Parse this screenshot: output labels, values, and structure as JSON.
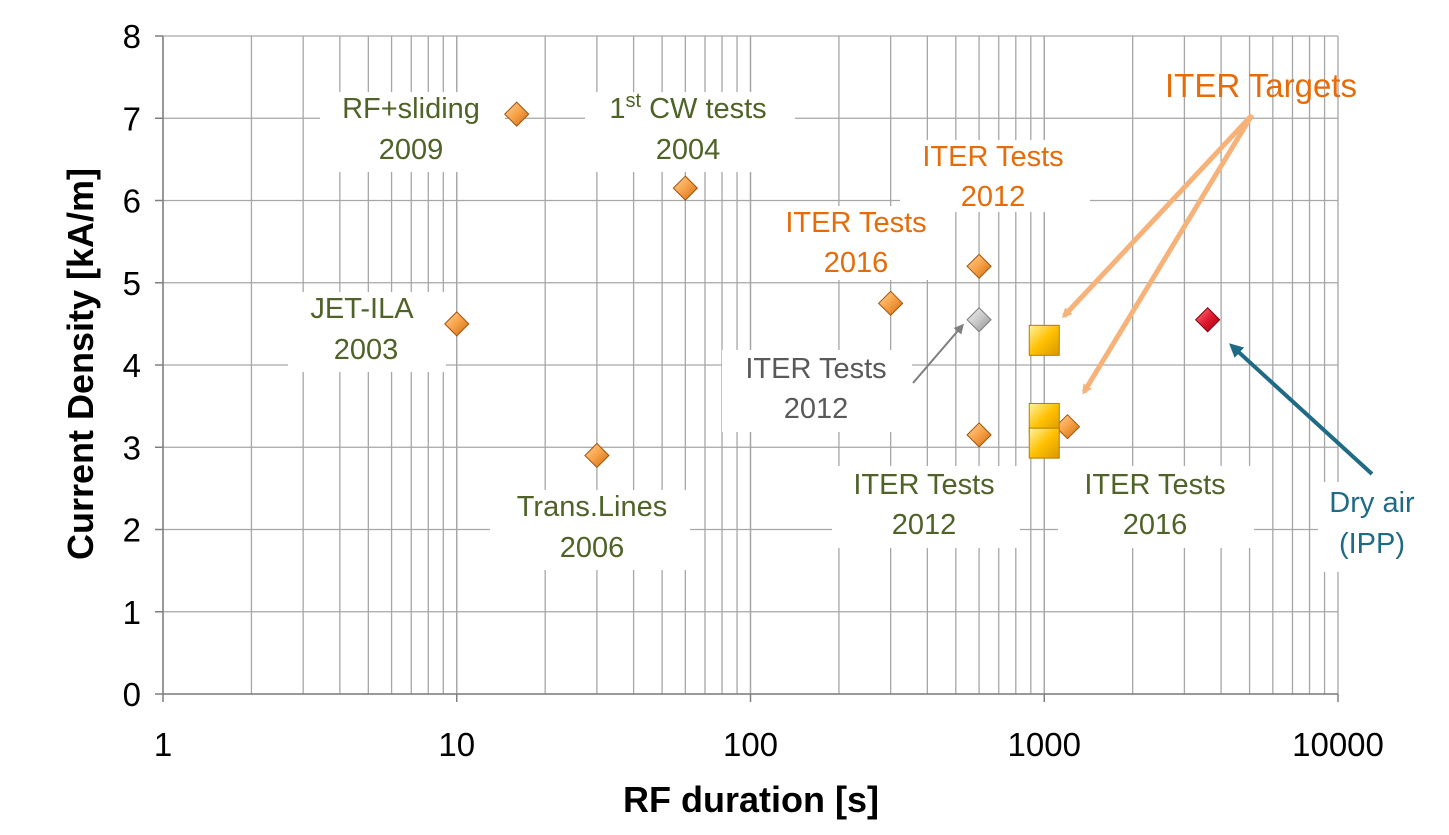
{
  "colors": {
    "olive": "#4f6228",
    "orange": "#e46c0a",
    "gray": "#595959",
    "teal": "#1f6b85",
    "light_orange": "#f7b27a",
    "grid": "#a6a6a6",
    "diamond_orange": "#f7a147",
    "diamond_gray": "#c8c8c8",
    "diamond_red": "#e0192f",
    "square_yellow": "#ffc000"
  },
  "chart_data": {
    "type": "scatter",
    "xscale": "log",
    "xlim": [
      1,
      10000
    ],
    "ylim": [
      0,
      8
    ],
    "xlabel": "RF duration [s]",
    "ylabel": "Current Density [kA/m]",
    "x_ticks": [
      "1",
      "10",
      "100",
      "1000",
      "10000"
    ],
    "y_ticks": [
      "0",
      "1",
      "2",
      "3",
      "4",
      "5",
      "6",
      "7",
      "8"
    ],
    "grid": "major and minor",
    "series": [
      {
        "marker": "diamond-orange",
        "points": [
          {
            "x": 10,
            "y": 4.5
          },
          {
            "x": 16,
            "y": 7.05
          },
          {
            "x": 30,
            "y": 2.9
          },
          {
            "x": 60,
            "y": 6.15
          },
          {
            "x": 300,
            "y": 4.75
          },
          {
            "x": 600,
            "y": 5.2
          },
          {
            "x": 600,
            "y": 3.15
          },
          {
            "x": 1200,
            "y": 3.25
          }
        ]
      },
      {
        "marker": "diamond-gray",
        "points": [
          {
            "x": 600,
            "y": 4.55
          }
        ]
      },
      {
        "marker": "diamond-red",
        "points": [
          {
            "x": 3600,
            "y": 4.55
          }
        ]
      },
      {
        "marker": "square-yellow",
        "points": [
          {
            "x": 1000,
            "y": 4.3
          },
          {
            "x": 1000,
            "y": 3.35
          },
          {
            "x": 1000,
            "y": 3.05
          }
        ]
      }
    ],
    "annotations": [
      {
        "lines": [
          "RF+sliding",
          "2009"
        ],
        "color": "olive"
      },
      {
        "lines": [
          "1st CW tests",
          "2004"
        ],
        "color": "olive",
        "superscript_part": "st"
      },
      {
        "lines": [
          "JET-ILA",
          "2003"
        ],
        "color": "olive"
      },
      {
        "lines": [
          "Trans.Lines",
          "2006"
        ],
        "color": "olive"
      },
      {
        "lines": [
          "ITER Tests",
          "2012"
        ],
        "color": "orange"
      },
      {
        "lines": [
          "ITER Tests",
          "2016"
        ],
        "color": "orange"
      },
      {
        "lines": [
          "ITER Tests",
          "2012"
        ],
        "color": "gray"
      },
      {
        "lines": [
          "ITER Tests",
          "2012"
        ],
        "color": "olive"
      },
      {
        "lines": [
          "ITER Tests",
          "2016"
        ],
        "color": "olive"
      },
      {
        "lines": [
          "Dry air",
          "(IPP)"
        ],
        "color": "teal"
      },
      {
        "lines": [
          "ITER Targets"
        ],
        "color": "orange"
      }
    ]
  }
}
